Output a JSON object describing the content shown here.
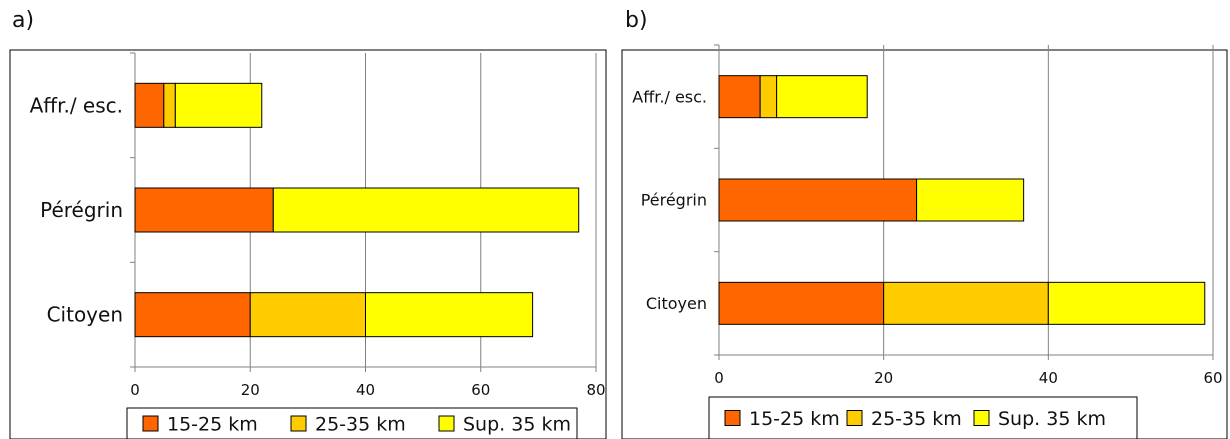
{
  "chart_data": [
    {
      "type": "bar",
      "orientation": "horizontal",
      "stacked": true,
      "panel_label": "a)",
      "categories": [
        "Affr./ esc.",
        "Pérégrin",
        "Citoyen"
      ],
      "series": [
        {
          "name": "15-25 km",
          "color": "#ff6600",
          "values": [
            5,
            24,
            20
          ]
        },
        {
          "name": "25-35 km",
          "color": "#ffcc00",
          "values": [
            2,
            0,
            20
          ]
        },
        {
          "name": "Sup. 35 km",
          "color": "#ffff00",
          "values": [
            15,
            53,
            29
          ]
        }
      ],
      "xlim": [
        0,
        80
      ],
      "xticks": [
        0,
        20,
        40,
        60,
        80
      ],
      "grid": true,
      "legend": "bottom"
    },
    {
      "type": "bar",
      "orientation": "horizontal",
      "stacked": true,
      "panel_label": "b)",
      "categories": [
        "Affr./ esc.",
        "Pérégrin",
        "Citoyen"
      ],
      "series": [
        {
          "name": "15-25 km",
          "color": "#ff6600",
          "values": [
            5,
            24,
            20
          ]
        },
        {
          "name": "25-35 km",
          "color": "#ffcc00",
          "values": [
            2,
            0,
            20
          ]
        },
        {
          "name": "Sup. 35 km",
          "color": "#ffff00",
          "values": [
            11,
            13,
            19
          ]
        }
      ],
      "xlim": [
        0,
        60
      ],
      "xticks": [
        0,
        20,
        40,
        60
      ],
      "grid": true,
      "legend": "bottom"
    }
  ]
}
